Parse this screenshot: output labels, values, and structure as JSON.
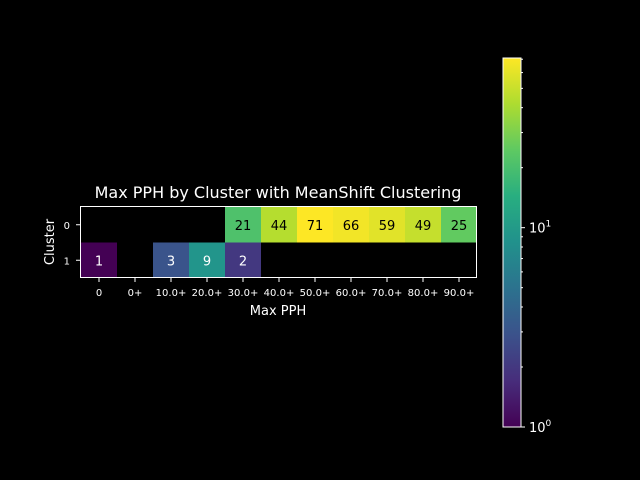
{
  "chart_data": {
    "type": "heatmap",
    "title": "Max PPH by Cluster with MeanShift Clustering",
    "xlabel": "Max PPH",
    "ylabel": "Cluster",
    "x_categories": [
      "0",
      "0+",
      "10.0+",
      "20.0+",
      "30.0+",
      "40.0+",
      "50.0+",
      "60.0+",
      "70.0+",
      "80.0+",
      "90.0+"
    ],
    "y_categories": [
      "0",
      "1"
    ],
    "values": [
      [
        null,
        null,
        null,
        null,
        21,
        44,
        71,
        66,
        59,
        49,
        25
      ],
      [
        1,
        null,
        3,
        9,
        2,
        null,
        null,
        null,
        null,
        null,
        null
      ]
    ],
    "colorbar": {
      "scale": "log",
      "range": [
        1,
        71
      ],
      "colormap": "viridis",
      "tick_labels": [
        "10^0",
        "10^1"
      ]
    },
    "grid": false,
    "background": "#000000",
    "foreground": "#ffffff"
  }
}
